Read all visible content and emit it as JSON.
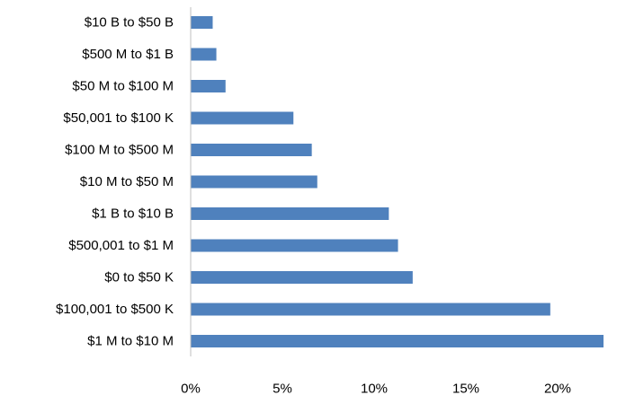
{
  "chart_data": {
    "type": "bar",
    "orientation": "horizontal",
    "title": "",
    "xlabel": "",
    "ylabel": "",
    "categories": [
      "$10 B to $50 B",
      "$500 M to $1 B",
      "$50 M to $100 M",
      "$50,001 to $100 K",
      "$100 M to $500 M",
      "$10 M to $50 M",
      "$1 B to $10 B",
      "$500,001 to $1 M",
      "$0 to $50 K",
      "$100,001 to $500 K",
      "$1 M to $10 M"
    ],
    "values": [
      1.2,
      1.4,
      1.9,
      5.6,
      6.6,
      6.9,
      10.8,
      11.3,
      12.1,
      19.6,
      22.7
    ],
    "xlim": [
      0,
      22.5
    ],
    "xticks": [
      0,
      5,
      10,
      15,
      20
    ],
    "xtick_labels": [
      "0%",
      "5%",
      "10%",
      "15%",
      "20%"
    ],
    "grid": false,
    "legend": "none",
    "bar_color": "#4F81BD",
    "axis_color": "#BFBFBF"
  }
}
